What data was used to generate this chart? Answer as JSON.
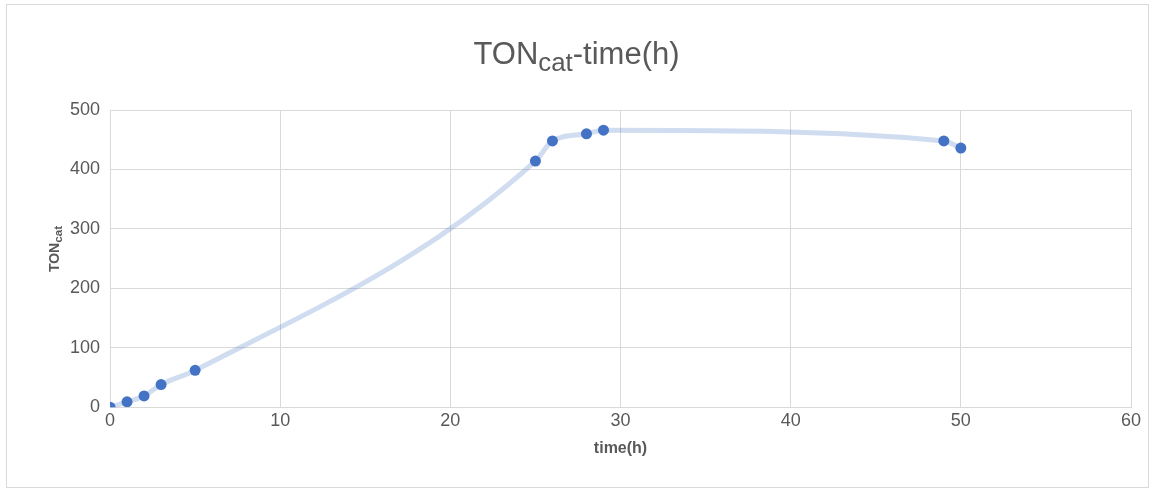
{
  "chart_data": {
    "type": "line",
    "title": "TON$_{cat}$-time(h)",
    "xlabel": "time(h)",
    "ylabel": "TON$_{cat}$",
    "x": [
      0,
      1,
      2,
      3,
      5,
      25,
      26,
      28,
      29,
      49,
      50
    ],
    "series": [
      {
        "color": "#4472c4",
        "values": [
          0,
          9,
          19,
          38,
          62,
          414,
          448,
          460,
          466,
          448,
          436
        ]
      }
    ],
    "xlim": [
      0,
      60
    ],
    "xticks": [
      0,
      10,
      20,
      30,
      40,
      50,
      60
    ],
    "ylim": [
      0,
      500
    ],
    "yticks": [
      0,
      100,
      200,
      300,
      400,
      500
    ],
    "grid": true,
    "legend": false,
    "marker": "circle",
    "line_style": "solid"
  }
}
